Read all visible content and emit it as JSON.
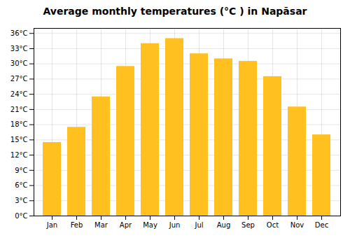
{
  "chart_data": {
    "type": "bar",
    "title": "Average monthly temperatures (°C ) in Napāsar",
    "categories": [
      "Jan",
      "Feb",
      "Mar",
      "Apr",
      "May",
      "Jun",
      "Jul",
      "Aug",
      "Sep",
      "Oct",
      "Nov",
      "Dec"
    ],
    "values": [
      14.5,
      17.5,
      23.5,
      29.5,
      34.0,
      35.0,
      32.0,
      31.0,
      30.5,
      27.5,
      21.5,
      16.0
    ],
    "color": "#FFC020",
    "ylim": [
      0,
      37
    ],
    "yticks": [
      {
        "value": 0,
        "label": "0°C"
      },
      {
        "value": 3,
        "label": "3°C"
      },
      {
        "value": 6,
        "label": "6°C"
      },
      {
        "value": 9,
        "label": "9°C"
      },
      {
        "value": 12,
        "label": "12°C"
      },
      {
        "value": 15,
        "label": "15°C"
      },
      {
        "value": 18,
        "label": "18°C"
      },
      {
        "value": 21,
        "label": "21°C"
      },
      {
        "value": 24,
        "label": "24°C"
      },
      {
        "value": 27,
        "label": "27°C"
      },
      {
        "value": 30,
        "label": "30°C"
      },
      {
        "value": 33,
        "label": "33°C"
      },
      {
        "value": 36,
        "label": "36°C"
      }
    ],
    "grid": true
  }
}
